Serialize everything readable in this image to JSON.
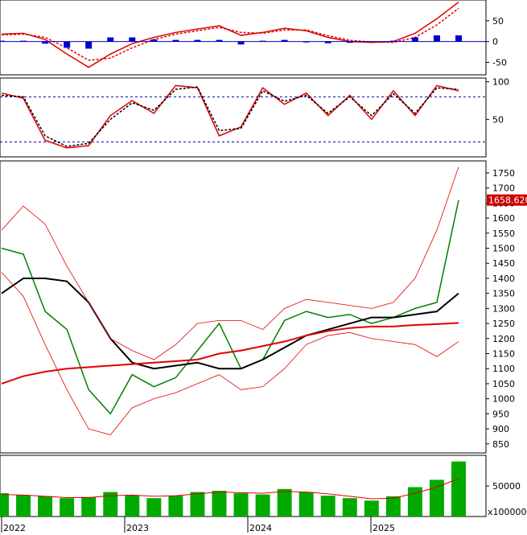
{
  "chart_data": [
    {
      "panel": "MACD",
      "type": "line",
      "y_ticks": [
        "50",
        "0",
        "-50"
      ],
      "ylim": [
        -80,
        100
      ],
      "x": [
        "2022-01",
        "2022-03",
        "2022-05",
        "2022-07",
        "2022-09",
        "2022-11",
        "2023-01",
        "2023-03",
        "2023-05",
        "2023-07",
        "2023-09",
        "2023-11",
        "2024-01",
        "2024-03",
        "2024-05",
        "2024-07",
        "2024-09",
        "2024-11",
        "2025-01",
        "2025-03",
        "2025-05",
        "2025-07"
      ],
      "series": [
        {
          "role": "macd",
          "color": "#e00000",
          "values": [
            18,
            20,
            5,
            -30,
            -62,
            -30,
            -5,
            10,
            22,
            30,
            38,
            15,
            22,
            32,
            26,
            10,
            0,
            -2,
            0,
            20,
            55,
            95
          ]
        },
        {
          "role": "signal",
          "color": "#e00000",
          "dashed": true,
          "values": [
            16,
            18,
            10,
            -15,
            -45,
            -40,
            -15,
            5,
            18,
            26,
            34,
            22,
            20,
            28,
            28,
            14,
            3,
            -1,
            -2,
            10,
            40,
            80
          ]
        },
        {
          "role": "histogram",
          "color": "#0000cc",
          "values": [
            2,
            2,
            -5,
            -15,
            -17,
            10,
            10,
            5,
            4,
            4,
            4,
            -7,
            2,
            4,
            -2,
            -4,
            -3,
            -1,
            2,
            10,
            15,
            15
          ]
        }
      ]
    },
    {
      "panel": "Stochastic",
      "type": "line",
      "y_ticks": [
        "100",
        "50"
      ],
      "ylim": [
        0,
        105
      ],
      "reference_lines": [
        80,
        20
      ],
      "x": [
        "2022-01",
        "2022-03",
        "2022-05",
        "2022-07",
        "2022-09",
        "2022-11",
        "2023-01",
        "2023-03",
        "2023-05",
        "2023-07",
        "2023-09",
        "2023-11",
        "2024-01",
        "2024-03",
        "2024-05",
        "2024-07",
        "2024-09",
        "2024-11",
        "2025-01",
        "2025-03",
        "2025-05",
        "2025-07"
      ],
      "series": [
        {
          "role": "k",
          "color": "#e00000",
          "values": [
            85,
            78,
            22,
            12,
            15,
            55,
            75,
            58,
            95,
            92,
            28,
            40,
            92,
            70,
            85,
            55,
            82,
            50,
            88,
            55,
            95,
            88
          ]
        },
        {
          "role": "d",
          "color": "#000000",
          "dashed": true,
          "values": [
            82,
            80,
            28,
            14,
            18,
            50,
            72,
            62,
            90,
            93,
            35,
            38,
            88,
            74,
            82,
            58,
            80,
            55,
            84,
            58,
            92,
            90
          ]
        }
      ]
    },
    {
      "panel": "Price",
      "type": "line",
      "y_ticks": [
        "1750",
        "1700",
        "1650",
        "1600",
        "1550",
        "1500",
        "1450",
        "1400",
        "1350",
        "1300",
        "1250",
        "1200",
        "1150",
        "1100",
        "1050",
        "1000",
        "950",
        "900",
        "850"
      ],
      "ylim": [
        820,
        1790
      ],
      "last_price_label": "1658.620",
      "label_color": "#cc0000",
      "x": [
        "2022-01",
        "2022-03",
        "2022-05",
        "2022-07",
        "2022-09",
        "2022-11",
        "2023-01",
        "2023-03",
        "2023-05",
        "2023-07",
        "2023-09",
        "2023-11",
        "2024-01",
        "2024-03",
        "2024-05",
        "2024-07",
        "2024-09",
        "2024-11",
        "2025-01",
        "2025-03",
        "2025-05",
        "2025-07"
      ],
      "series": [
        {
          "role": "close",
          "color": "#008000",
          "values": [
            1500,
            1480,
            1290,
            1230,
            1030,
            950,
            1080,
            1040,
            1070,
            1160,
            1250,
            1100,
            1130,
            1260,
            1290,
            1270,
            1280,
            1250,
            1270,
            1300,
            1320,
            1660
          ]
        },
        {
          "role": "ma50",
          "color": "#000000",
          "values": [
            1350,
            1400,
            1400,
            1390,
            1320,
            1200,
            1120,
            1100,
            1110,
            1120,
            1100,
            1100,
            1130,
            1170,
            1210,
            1230,
            1250,
            1270,
            1270,
            1280,
            1290,
            1350
          ]
        },
        {
          "role": "ma200",
          "color": "#e00000",
          "values": [
            1050,
            1075,
            1090,
            1100,
            1105,
            1110,
            1115,
            1120,
            1125,
            1130,
            1150,
            1160,
            1175,
            1190,
            1210,
            1225,
            1235,
            1240,
            1240,
            1245,
            1248,
            1252
          ]
        },
        {
          "role": "bb_upper",
          "color": "#e00000",
          "thin": true,
          "values": [
            1560,
            1640,
            1580,
            1440,
            1320,
            1200,
            1160,
            1130,
            1180,
            1250,
            1260,
            1260,
            1230,
            1300,
            1330,
            1320,
            1310,
            1300,
            1320,
            1400,
            1560,
            1770
          ]
        },
        {
          "role": "bb_lower",
          "color": "#e00000",
          "thin": true,
          "values": [
            1420,
            1340,
            1180,
            1030,
            900,
            880,
            970,
            1000,
            1020,
            1050,
            1080,
            1030,
            1040,
            1100,
            1180,
            1210,
            1220,
            1200,
            1190,
            1180,
            1140,
            1190
          ]
        }
      ]
    },
    {
      "panel": "Volume",
      "type": "bar",
      "y_ticks": [
        "50000"
      ],
      "ylim": [
        0,
        100000
      ],
      "unit_label": "x100000",
      "x_labels": [
        "2022",
        "2023",
        "2024",
        "2025"
      ],
      "bar_color": "#00aa00",
      "ma_color": "#e00000",
      "x": [
        "2022-01",
        "2022-03",
        "2022-05",
        "2022-07",
        "2022-09",
        "2022-11",
        "2023-01",
        "2023-03",
        "2023-05",
        "2023-07",
        "2023-09",
        "2023-11",
        "2024-01",
        "2024-03",
        "2024-05",
        "2024-07",
        "2024-09",
        "2024-11",
        "2025-01",
        "2025-03",
        "2025-05",
        "2025-07"
      ],
      "values": [
        38000,
        35000,
        33000,
        30000,
        32000,
        40000,
        35000,
        30000,
        34000,
        40000,
        42000,
        38000,
        36000,
        45000,
        40000,
        34000,
        30000,
        26000,
        33000,
        48000,
        60000,
        90000
      ],
      "ma_values": [
        36000,
        35000,
        33000,
        31000,
        31000,
        34000,
        35000,
        33000,
        34000,
        37000,
        40000,
        39000,
        38000,
        41000,
        40000,
        37000,
        33000,
        29000,
        30000,
        38000,
        48000,
        62000
      ]
    }
  ]
}
